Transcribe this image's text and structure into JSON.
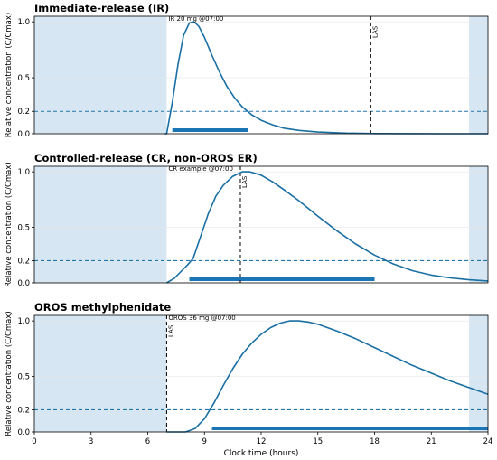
{
  "chart_data": [
    {
      "type": "line",
      "title": "Immediate-release (IR)",
      "ylabel": "Relative concentration (C/Cmax)",
      "xlabel": "",
      "xlim": [
        0,
        24
      ],
      "ylim": [
        0,
        1.05
      ],
      "yticks": [
        "0.0",
        "0.2",
        "0.5",
        "1.0"
      ],
      "xticks": [],
      "threshold": 0.2,
      "shaded_intervals": [
        [
          0,
          7
        ],
        [
          23,
          24
        ]
      ],
      "dose_annotation": "IR 20 mg @07:00",
      "las_label": "LAS",
      "las_x": 17.8,
      "effect_window": [
        7.3,
        11.3
      ],
      "curve": {
        "x": [
          6.9,
          7.0,
          7.3,
          7.6,
          7.9,
          8.2,
          8.45,
          8.7,
          9.0,
          9.4,
          9.8,
          10.2,
          10.6,
          11.0,
          11.5,
          12.0,
          12.6,
          13.2,
          14.0,
          15.0,
          16.5,
          18.0,
          20.0,
          22.0,
          24.0
        ],
        "y": [
          0,
          0,
          0.28,
          0.62,
          0.88,
          0.99,
          1.0,
          0.96,
          0.86,
          0.7,
          0.55,
          0.42,
          0.32,
          0.24,
          0.17,
          0.12,
          0.08,
          0.05,
          0.03,
          0.015,
          0.006,
          0.002,
          0.001,
          0.0,
          0.0
        ]
      }
    },
    {
      "type": "line",
      "title": "Controlled-release (CR, non-OROS ER)",
      "ylabel": "Relative concentration (C/Cmax)",
      "xlabel": "",
      "xlim": [
        0,
        24
      ],
      "ylim": [
        0,
        1.05
      ],
      "yticks": [
        "0.0",
        "0.2",
        "0.5",
        "1.0"
      ],
      "xticks": [],
      "threshold": 0.2,
      "shaded_intervals": [
        [
          0,
          7
        ],
        [
          23,
          24
        ]
      ],
      "dose_annotation": "CR example @07:00",
      "las_label": "LAS",
      "las_x": 10.9,
      "effect_window": [
        8.2,
        18.0
      ],
      "curve": {
        "x": [
          7.0,
          7.4,
          7.8,
          8.1,
          8.4,
          8.8,
          9.2,
          9.6,
          10.0,
          10.5,
          11.0,
          11.4,
          12.0,
          12.6,
          13.2,
          14.0,
          15.0,
          16.0,
          17.0,
          18.0,
          19.0,
          20.0,
          21.0,
          22.0,
          23.0,
          24.0
        ],
        "y": [
          0,
          0.04,
          0.11,
          0.16,
          0.22,
          0.42,
          0.62,
          0.78,
          0.88,
          0.96,
          1.0,
          1.0,
          0.97,
          0.91,
          0.84,
          0.74,
          0.6,
          0.47,
          0.35,
          0.25,
          0.17,
          0.11,
          0.07,
          0.045,
          0.028,
          0.017
        ]
      }
    },
    {
      "type": "line",
      "title": "OROS methylphenidate",
      "ylabel": "Relative concentration (C/Cmax)",
      "xlabel": "Clock time (hours)",
      "xlim": [
        0,
        24
      ],
      "ylim": [
        0,
        1.05
      ],
      "yticks": [
        "0.0",
        "0.2",
        "0.5",
        "1.0"
      ],
      "xticks": [
        "0",
        "3",
        "6",
        "9",
        "12",
        "15",
        "18",
        "21",
        "24"
      ],
      "threshold": 0.2,
      "shaded_intervals": [
        [
          0,
          7
        ],
        [
          23,
          24
        ]
      ],
      "dose_annotation": "OROS 36 mg @07:00",
      "las_label": "LAS",
      "las_x": 7.0,
      "effect_window": [
        9.4,
        24.0
      ],
      "curve": {
        "x": [
          7.0,
          8.0,
          8.5,
          9.0,
          9.5,
          10.0,
          10.5,
          11.0,
          11.5,
          12.0,
          12.5,
          13.0,
          13.5,
          14.0,
          14.5,
          15.0,
          16.0,
          17.0,
          18.0,
          19.0,
          20.0,
          21.0,
          22.0,
          23.0,
          24.0
        ],
        "y": [
          0,
          0,
          0.03,
          0.12,
          0.26,
          0.42,
          0.57,
          0.7,
          0.8,
          0.88,
          0.94,
          0.98,
          1.0,
          1.0,
          0.99,
          0.97,
          0.91,
          0.84,
          0.76,
          0.68,
          0.6,
          0.53,
          0.46,
          0.4,
          0.34
        ]
      }
    }
  ]
}
